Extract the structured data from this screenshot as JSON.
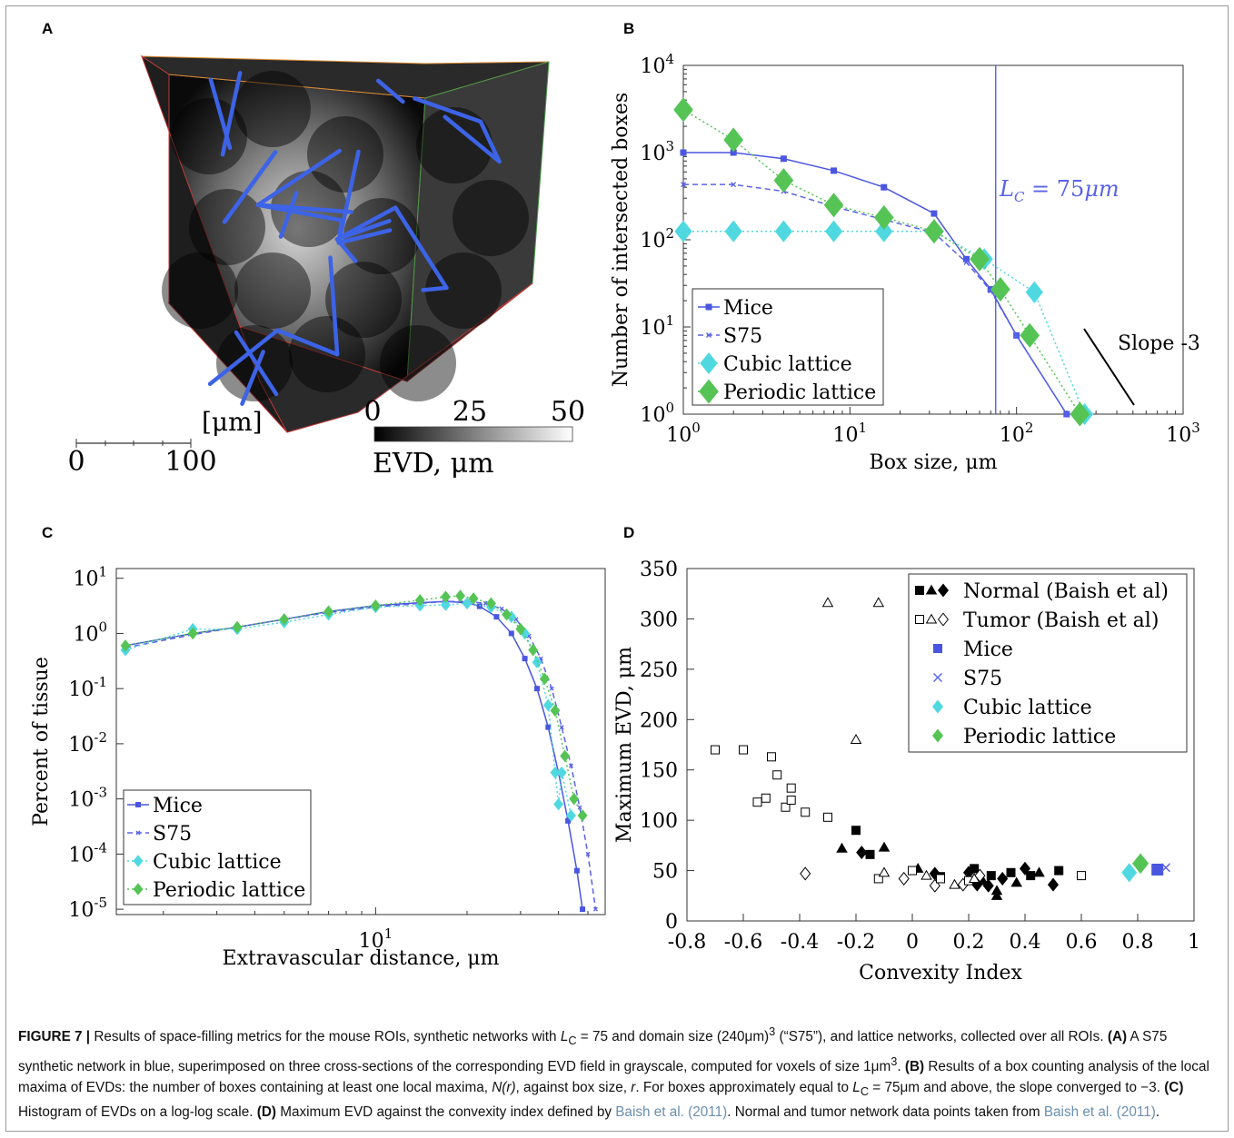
{
  "panels": {
    "a": {
      "label": "A",
      "colorbar": {
        "min": "0",
        "mid": "25",
        "max": "50",
        "title": "EVD, μm"
      },
      "scalebar": {
        "unit": "[μm]",
        "start": "0",
        "end": "100"
      }
    },
    "b": {
      "label": "B"
    },
    "c": {
      "label": "C"
    },
    "d": {
      "label": "D"
    }
  },
  "colors": {
    "mice": "#4a56e0",
    "s75": "#5a63e8",
    "cubic": "#4fd8e0",
    "periodic": "#55c455",
    "vessel": "#3d63e6"
  },
  "chart_data": [
    {
      "panel": "B",
      "type": "line",
      "xscale": "log",
      "yscale": "log",
      "xlim": [
        1,
        1000
      ],
      "ylim": [
        1,
        10000
      ],
      "xticks": [
        "10^0",
        "10^1",
        "10^2",
        "10^3"
      ],
      "yticks": [
        "10^0",
        "10^1",
        "10^2",
        "10^3",
        "10^4"
      ],
      "xlabel": "Box size, μm",
      "ylabel": "Number of intersected boxes",
      "vline": {
        "x": 75,
        "label": "L_C = 75μm"
      },
      "slope_annotation": "Slope -3",
      "legend_position": "lower-left",
      "series": [
        {
          "name": "Mice",
          "x": [
            1,
            2,
            4,
            8,
            16,
            32,
            50,
            70,
            100,
            200
          ],
          "y": [
            1000,
            1000,
            850,
            620,
            400,
            200,
            60,
            27,
            8,
            1
          ]
        },
        {
          "name": "S75",
          "x": [
            1,
            2,
            4,
            8,
            16,
            32,
            50,
            70,
            100,
            200
          ],
          "y": [
            430,
            430,
            360,
            240,
            170,
            120,
            55,
            26,
            8,
            1
          ]
        },
        {
          "name": "Cubic lattice",
          "x": [
            1,
            2,
            4,
            8,
            16,
            32,
            64,
            128,
            256
          ],
          "y": [
            125,
            125,
            125,
            125,
            125,
            125,
            60,
            25,
            1
          ]
        },
        {
          "name": "Periodic lattice",
          "x": [
            1,
            2,
            4,
            8,
            16,
            32,
            60,
            80,
            120,
            240
          ],
          "y": [
            3100,
            1400,
            480,
            250,
            180,
            125,
            60,
            27,
            8,
            1
          ]
        }
      ]
    },
    {
      "panel": "C",
      "type": "line",
      "xscale": "log",
      "yscale": "log",
      "xlim": [
        1.4,
        57
      ],
      "ylim": [
        8e-06,
        15
      ],
      "xticks": [
        "10^1"
      ],
      "yticks": [
        "10^-5",
        "10^-4",
        "10^-3",
        "10^-2",
        "10^-1",
        "10^0",
        "10^1"
      ],
      "xlabel": "Extravascular distance, μm",
      "ylabel": "Percent of tissue",
      "legend_position": "lower-left",
      "series": [
        {
          "name": "Mice",
          "x": [
            1.5,
            2.5,
            3.5,
            5,
            7,
            10,
            14,
            17,
            20,
            22,
            25,
            28,
            31,
            34,
            37,
            40,
            43,
            46,
            48
          ],
          "y": [
            0.6,
            1,
            1.3,
            1.8,
            2.5,
            3.2,
            3.6,
            3.8,
            3.6,
            3.1,
            2.0,
            1.0,
            0.35,
            0.1,
            0.02,
            0.003,
            0.0004,
            5e-05,
            1e-05
          ]
        },
        {
          "name": "S75",
          "x": [
            1.5,
            2.5,
            3.5,
            5,
            7,
            10,
            14,
            17,
            20,
            23,
            26,
            29,
            32,
            35,
            38,
            41,
            44,
            47,
            50,
            53
          ],
          "y": [
            0.55,
            0.95,
            1.3,
            1.8,
            2.4,
            3.0,
            3.5,
            3.8,
            3.8,
            3.5,
            2.8,
            1.8,
            0.9,
            0.35,
            0.1,
            0.02,
            0.004,
            0.0007,
            0.0001,
            1e-05
          ]
        },
        {
          "name": "Cubic lattice",
          "x": [
            1.5,
            2.5,
            3.5,
            5,
            7,
            10,
            14,
            17,
            20,
            24,
            28,
            31,
            34,
            37,
            39,
            40,
            41,
            44
          ],
          "y": [
            0.5,
            1.2,
            1.2,
            1.6,
            2.2,
            3.0,
            3.2,
            3.3,
            3.5,
            3.0,
            2.0,
            1.0,
            0.3,
            0.05,
            0.003,
            0.0008,
            0.003,
            0.0005
          ]
        },
        {
          "name": "Periodic lattice",
          "x": [
            1.5,
            2.5,
            3.5,
            5,
            7,
            10,
            14,
            17,
            19,
            21,
            24,
            27,
            30,
            33,
            36,
            39,
            42,
            45,
            48
          ],
          "y": [
            0.6,
            1.0,
            1.3,
            1.8,
            2.5,
            3.2,
            4.0,
            4.6,
            4.8,
            4.3,
            3.5,
            2.2,
            1.2,
            0.5,
            0.15,
            0.04,
            0.006,
            0.001,
            0.0005
          ]
        }
      ]
    },
    {
      "panel": "D",
      "type": "scatter",
      "xlim": [
        -0.8,
        1
      ],
      "ylim": [
        0,
        350
      ],
      "xticks": [
        "-0.8",
        "-0.6",
        "-0.4",
        "-0.2",
        "0",
        "0.2",
        "0.4",
        "0.6",
        "0.8",
        "1"
      ],
      "yticks": [
        "0",
        "50",
        "100",
        "150",
        "200",
        "250",
        "300",
        "350"
      ],
      "xlabel": "Convexity Index",
      "ylabel": "Maximum EVD, μm",
      "legend_position": "top-right",
      "series": [
        {
          "name": "Normal (Baish et al)",
          "markers": "filled square/triangle/diamond",
          "points": [
            [
              -0.2,
              90
            ],
            [
              -0.25,
              72
            ],
            [
              -0.18,
              68
            ],
            [
              -0.15,
              66
            ],
            [
              0.02,
              52
            ],
            [
              0.08,
              47
            ],
            [
              0.1,
              44
            ],
            [
              -0.1,
              73
            ],
            [
              0.2,
              48
            ],
            [
              0.22,
              52
            ],
            [
              0.25,
              40
            ],
            [
              0.27,
              35
            ],
            [
              0.28,
              45
            ],
            [
              0.3,
              30
            ],
            [
              0.32,
              42
            ],
            [
              0.35,
              48
            ],
            [
              0.37,
              38
            ],
            [
              0.4,
              52
            ],
            [
              0.42,
              45
            ],
            [
              0.45,
              48
            ],
            [
              0.5,
              36
            ],
            [
              0.52,
              50
            ],
            [
              0.3,
              25
            ],
            [
              0.23,
              36
            ]
          ]
        },
        {
          "name": "Tumor (Baish et al)",
          "markers": "open square/triangle/diamond",
          "points": [
            [
              -0.7,
              170
            ],
            [
              -0.6,
              170
            ],
            [
              -0.5,
              163
            ],
            [
              -0.48,
              145
            ],
            [
              -0.55,
              118
            ],
            [
              -0.52,
              122
            ],
            [
              -0.45,
              113
            ],
            [
              -0.43,
              120
            ],
            [
              -0.43,
              132
            ],
            [
              -0.38,
              108
            ],
            [
              -0.3,
              103
            ],
            [
              -0.3,
              316
            ],
            [
              -0.12,
              316
            ],
            [
              -0.2,
              180
            ],
            [
              -0.38,
              47
            ],
            [
              -0.12,
              42
            ],
            [
              -0.1,
              48
            ],
            [
              -0.03,
              42
            ],
            [
              0.0,
              50
            ],
            [
              0.05,
              45
            ],
            [
              0.08,
              35
            ],
            [
              0.1,
              42
            ],
            [
              0.15,
              36
            ],
            [
              0.18,
              36
            ],
            [
              0.2,
              40
            ],
            [
              0.22,
              42
            ],
            [
              0.24,
              45
            ],
            [
              0.6,
              45
            ]
          ]
        },
        {
          "name": "Mice",
          "points": [
            [
              0.87,
              51
            ]
          ]
        },
        {
          "name": "S75",
          "points": [
            [
              0.9,
              53
            ]
          ]
        },
        {
          "name": "Cubic lattice",
          "points": [
            [
              0.77,
              48
            ]
          ]
        },
        {
          "name": "Periodic lattice",
          "points": [
            [
              0.81,
              57
            ]
          ]
        }
      ]
    }
  ],
  "caption": {
    "fig": "FIGURE 7 |",
    "p1": " Results of space-filling metrics for the mouse ROIs, synthetic networks with ",
    "lc": "L",
    "lc_sub": "C",
    "p2": " = 75 and domain size (240μm)",
    "p2_sup": "3",
    "p3": " (“S75”), and lattice networks, collected over all ROIs. ",
    "a": "(A)",
    "p4": " A S75 synthetic network in blue, superimposed on three cross-sections of the corresponding EVD field in grayscale, computed for voxels of size 1μm",
    "p4_sup": "3",
    "p4b": ". ",
    "b": "(B)",
    "p5": " Results of a box counting analysis of the local maxima of EVDs: the number of boxes containing at least one local maxima, ",
    "nr": "N(r)",
    "p6": ", against box size, ",
    "r": "r",
    "p7": ". For boxes approximately equal to ",
    "lc2": "L",
    "lc2_sub": "C",
    "p8": " = 75μm and above, the slope converged to −3. ",
    "c": "(C)",
    "p9": " Histogram of EVDs on a log-log scale. ",
    "d": "(D)",
    "p10": " Maximum EVD against the convexity index defined by ",
    "ref1": "Baish et al. (2011)",
    "p11": ". Normal and tumor network data points taken from ",
    "ref2": "Baish et al. (2011)",
    "p12": "."
  }
}
